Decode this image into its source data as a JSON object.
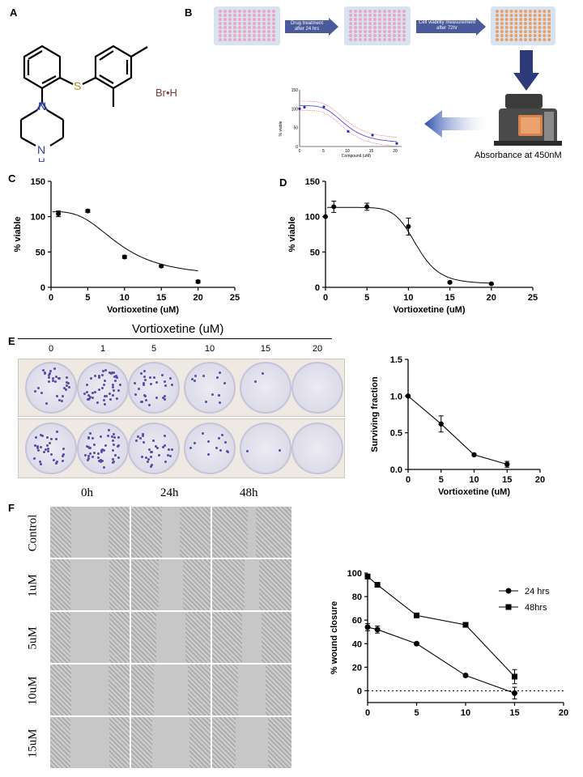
{
  "panels": {
    "A": "A",
    "B": "B",
    "C": "C",
    "D": "D",
    "E": "E",
    "F": "F"
  },
  "structure": {
    "n_top": "N",
    "nh_bottom": "N",
    "nh_h": "H",
    "s": "S",
    "salt": "Br•H"
  },
  "workflow": {
    "arrow1": "Drug treatment after 24 hrs",
    "arrow2": "Cell viability measurement after 72hr",
    "instrument_caption": "Absorbance at 450nM",
    "mini_ylabel": "% viable",
    "mini_xlabel": "Compound (uM)",
    "mini_yticks": [
      "150",
      "100",
      "50",
      "0"
    ],
    "mini_xticks": [
      "0",
      "5",
      "10",
      "15",
      "20"
    ],
    "plate_colors": {
      "pink": "#e9a8c4",
      "orange": "#e8a06a",
      "arrow": "#4a5a9a"
    }
  },
  "colony": {
    "title": "Vortioxetine (uM)",
    "concentrations": [
      "0",
      "1",
      "5",
      "10",
      "15",
      "20"
    ]
  },
  "wound": {
    "times": [
      "0h",
      "24h",
      "48h"
    ],
    "rows": [
      "Control",
      "1uM",
      "5uM",
      "10uM",
      "15uM"
    ]
  },
  "chart_data": [
    {
      "type": "scatter",
      "panel": "C",
      "xlabel": "Vortioxetine (uM)",
      "ylabel": "% viable",
      "xlim": [
        0,
        25
      ],
      "ylim": [
        0,
        150
      ],
      "xticks": [
        0,
        5,
        10,
        15,
        20,
        25
      ],
      "yticks": [
        0,
        50,
        100,
        150
      ],
      "points": [
        {
          "x": 1,
          "y": 104,
          "err": 4
        },
        {
          "x": 5,
          "y": 108,
          "err": 2
        },
        {
          "x": 10,
          "y": 43,
          "err": 2
        },
        {
          "x": 15,
          "y": 30,
          "err": 1.5
        },
        {
          "x": 20,
          "y": 8,
          "err": 2
        }
      ],
      "fit": {
        "top": 107,
        "bottom": 15,
        "ic50": 9.3,
        "hill": 3
      }
    },
    {
      "type": "scatter",
      "panel": "D",
      "xlabel": "Vortioxetine (uM)",
      "ylabel": "% viable",
      "xlim": [
        0,
        25
      ],
      "ylim": [
        0,
        150
      ],
      "xticks": [
        0,
        5,
        10,
        15,
        20,
        25
      ],
      "yticks": [
        0,
        50,
        100,
        150
      ],
      "points": [
        {
          "x": 0,
          "y": 100,
          "err": 0
        },
        {
          "x": 1,
          "y": 114,
          "err": 8
        },
        {
          "x": 5,
          "y": 114,
          "err": 5
        },
        {
          "x": 10,
          "y": 86,
          "err": 12
        },
        {
          "x": 15,
          "y": 7,
          "err": 1
        },
        {
          "x": 20,
          "y": 5,
          "err": 1
        }
      ],
      "fit": {
        "top": 113,
        "bottom": 5,
        "ic50": 11,
        "hill": 8
      }
    },
    {
      "type": "line",
      "panel": "E",
      "xlabel": "Vortioxetine (uM)",
      "ylabel": "Surviving fraction",
      "xlim": [
        0,
        20
      ],
      "ylim": [
        0,
        1.5
      ],
      "xticks": [
        0,
        5,
        10,
        15,
        20
      ],
      "yticks": [
        0.0,
        0.5,
        1.0,
        1.5
      ],
      "ytick_labels": [
        "0.0",
        "0.5",
        "1.0",
        "1.5"
      ],
      "x": [
        0,
        5,
        10,
        15
      ],
      "y": [
        1.0,
        0.62,
        0.2,
        0.07
      ],
      "err": [
        0,
        0.11,
        0.01,
        0.04
      ]
    },
    {
      "type": "line",
      "panel": "F",
      "xlabel": "Vortioxetine (uM)",
      "ylabel": "% wound closure",
      "xlim": [
        0,
        20
      ],
      "ylim": [
        -10,
        100
      ],
      "xticks": [
        0,
        5,
        10,
        15,
        20
      ],
      "yticks": [
        0,
        20,
        40,
        60,
        80,
        100
      ],
      "legend_position": "top-right",
      "reference_line_y": 0,
      "series": [
        {
          "name": "24 hrs",
          "marker": "circle",
          "x": [
            0,
            1,
            5,
            10,
            15
          ],
          "y": [
            54,
            52,
            40,
            13,
            -2
          ],
          "err": [
            3,
            3,
            1,
            1,
            5
          ]
        },
        {
          "name": "48hrs",
          "marker": "square",
          "x": [
            0,
            1,
            5,
            10,
            15
          ],
          "y": [
            97,
            90,
            64,
            56,
            12
          ],
          "err": [
            1,
            1,
            1,
            2,
            6
          ]
        }
      ]
    }
  ]
}
